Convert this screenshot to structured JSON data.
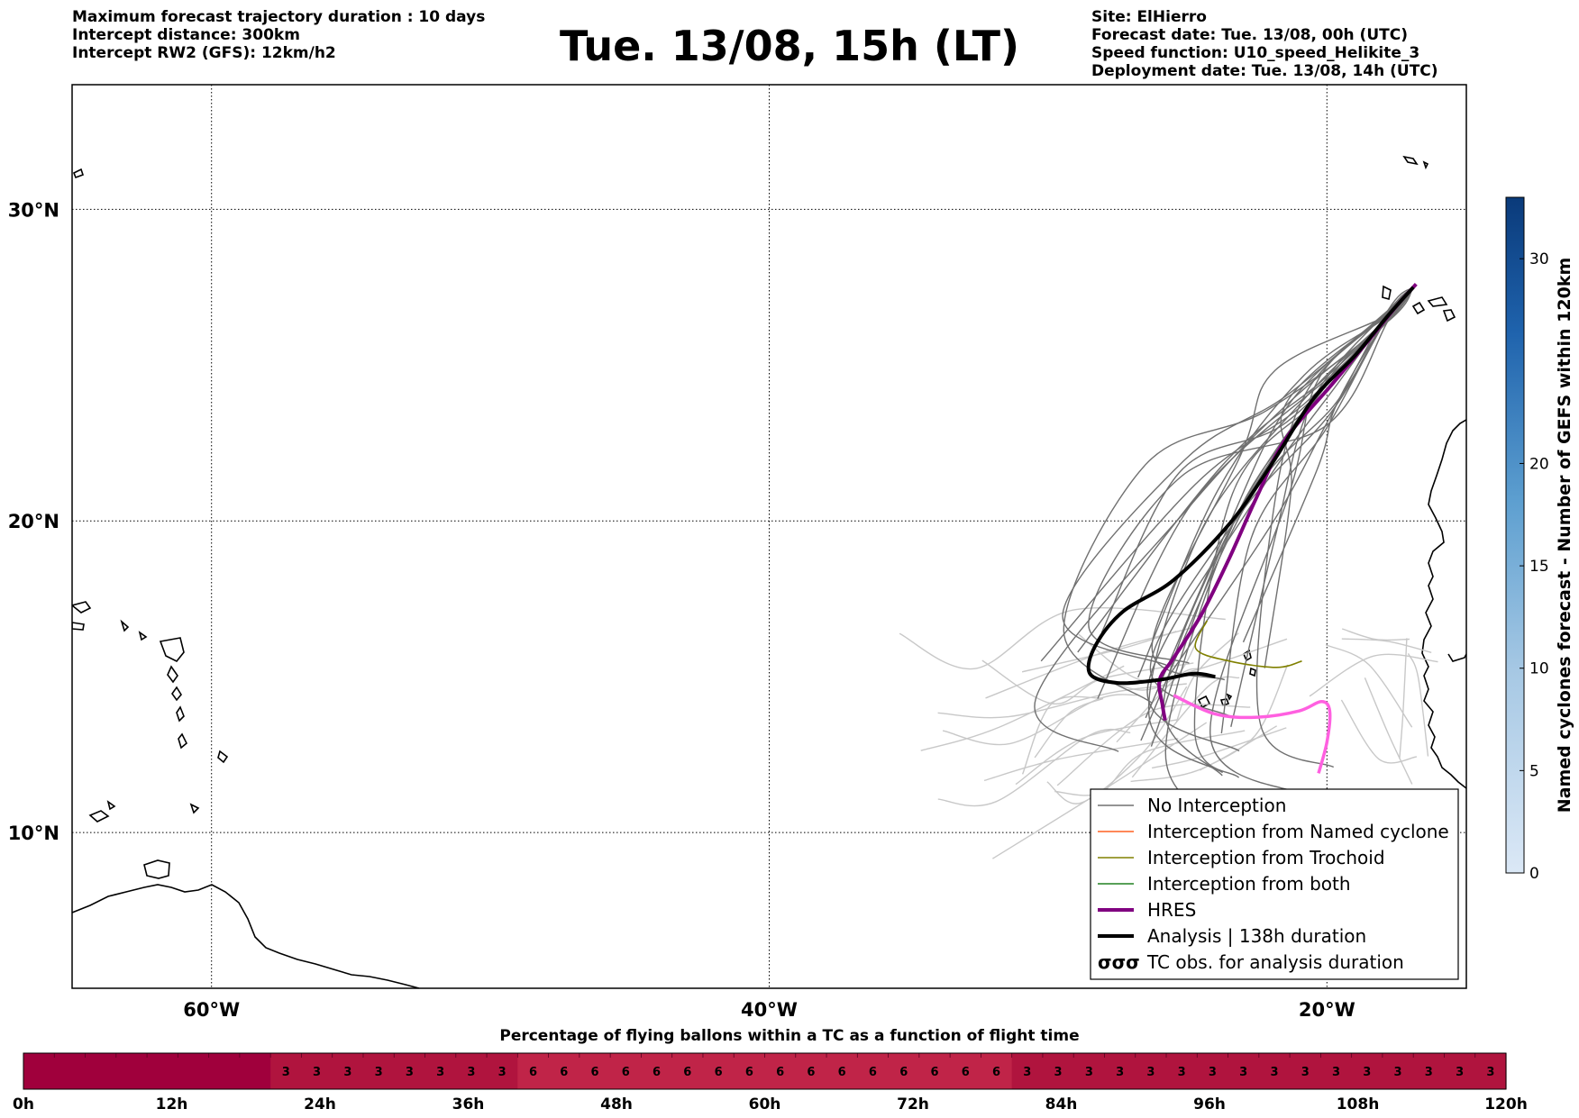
{
  "header": {
    "left_lines": [
      "Maximum forecast trajectory duration : 10 days",
      "Intercept distance: 300km",
      "Intercept RW2 (GFS):  12km/h2"
    ],
    "title": "Tue. 13/08, 15h (LT)",
    "right_lines": [
      "Site: ElHierro",
      "Forecast date: Tue. 13/08, 00h (UTC)",
      "Speed function: U10_speed_Helikite_3",
      "Deployment date: Tue. 13/08, 14h (UTC)"
    ]
  },
  "map": {
    "lon_range": [
      -65,
      -15
    ],
    "lat_range": [
      5,
      34
    ],
    "lat_labels": [
      {
        "lat": 30,
        "text": "30°N"
      },
      {
        "lat": 20,
        "text": "20°N"
      },
      {
        "lat": 10,
        "text": "10°N"
      }
    ],
    "lon_labels": [
      {
        "lon": -60,
        "text": "60°W"
      },
      {
        "lon": -40,
        "text": "40°W"
      },
      {
        "lon": -20,
        "text": "20°W"
      }
    ],
    "colors": {
      "no_interception": "#707070",
      "light_traj": "#c8c8c8",
      "named_cyclone": "#ff6020",
      "trochoid": "#808000",
      "both": "#208020",
      "hres": "#800080",
      "analysis": "#000000",
      "pink_track": "#ff60e0"
    },
    "hres_track": [
      [
        -16.8,
        27.6
      ],
      [
        -17.5,
        26.9
      ],
      [
        -18.5,
        25.8
      ],
      [
        -19.8,
        24.4
      ],
      [
        -21.5,
        22.6
      ],
      [
        -22.5,
        20.8
      ],
      [
        -23.5,
        18.8
      ],
      [
        -24.5,
        17.0
      ],
      [
        -25.5,
        15.6
      ],
      [
        -26.0,
        14.9
      ],
      [
        -25.9,
        14.1
      ],
      [
        -25.8,
        13.6
      ]
    ],
    "analysis_track": [
      [
        -16.9,
        27.5
      ],
      [
        -17.8,
        26.6
      ],
      [
        -19.0,
        25.3
      ],
      [
        -20.5,
        23.9
      ],
      [
        -22.0,
        21.8
      ],
      [
        -23.5,
        19.9
      ],
      [
        -25.5,
        18.1
      ],
      [
        -27.3,
        17.1
      ],
      [
        -28.3,
        16.0
      ],
      [
        -28.5,
        15.1
      ],
      [
        -27.5,
        14.8
      ],
      [
        -26.0,
        14.9
      ],
      [
        -24.8,
        15.1
      ],
      [
        -24.0,
        15.0
      ]
    ],
    "pink_track": [
      [
        -25.5,
        14.4
      ],
      [
        -24.0,
        13.8
      ],
      [
        -22.5,
        13.7
      ],
      [
        -21.0,
        13.9
      ],
      [
        -20.2,
        14.2
      ],
      [
        -19.9,
        13.9
      ],
      [
        -20.0,
        12.9
      ],
      [
        -20.3,
        11.9
      ]
    ],
    "trochoid_track": [
      [
        -24.3,
        16.8
      ],
      [
        -24.7,
        15.9
      ],
      [
        -23.5,
        15.5
      ],
      [
        -21.8,
        15.3
      ],
      [
        -20.9,
        15.5
      ]
    ]
  },
  "legend": {
    "items": [
      {
        "label": "No Interception",
        "style": "no_interception"
      },
      {
        "label": "Interception from Named cyclone",
        "style": "named_cyclone"
      },
      {
        "label": "Interception from Trochoid",
        "style": "trochoid"
      },
      {
        "label": "Interception from both",
        "style": "both"
      },
      {
        "label": "HRES",
        "style": "hres"
      },
      {
        "label": "Analysis | 138h duration",
        "style": "analysis"
      },
      {
        "label": "TC obs. for analysis duration",
        "style": "tc_obs",
        "symbol": "σσσ"
      }
    ]
  },
  "colorbar": {
    "label": "Named cyclones forecast - Number of GEFS within 120km",
    "range": [
      0,
      33
    ],
    "ticks": [
      0,
      5,
      10,
      15,
      20,
      30
    ],
    "color_low": "#dbe8f6",
    "color_high": "#0a3a7a"
  },
  "timebar": {
    "title": "Percentage of flying ballons within a TC as a function of flight time",
    "cells": [
      "",
      "",
      "",
      "",
      "",
      "",
      "",
      "",
      "3",
      "3",
      "3",
      "3",
      "3",
      "3",
      "3",
      "3",
      "6",
      "6",
      "6",
      "6",
      "6",
      "6",
      "6",
      "6",
      "6",
      "6",
      "6",
      "6",
      "6",
      "6",
      "6",
      "6",
      "3",
      "3",
      "3",
      "3",
      "3",
      "3",
      "3",
      "3",
      "3",
      "3",
      "3",
      "3",
      "3",
      "3",
      "3",
      "3"
    ],
    "hour_labels": [
      "0h",
      "12h",
      "24h",
      "36h",
      "48h",
      "60h",
      "72h",
      "84h",
      "96h",
      "108h",
      "120h"
    ],
    "colors": {
      "empty": "#a0003c",
      "3": "#b0143e",
      "6": "#c02448"
    }
  }
}
